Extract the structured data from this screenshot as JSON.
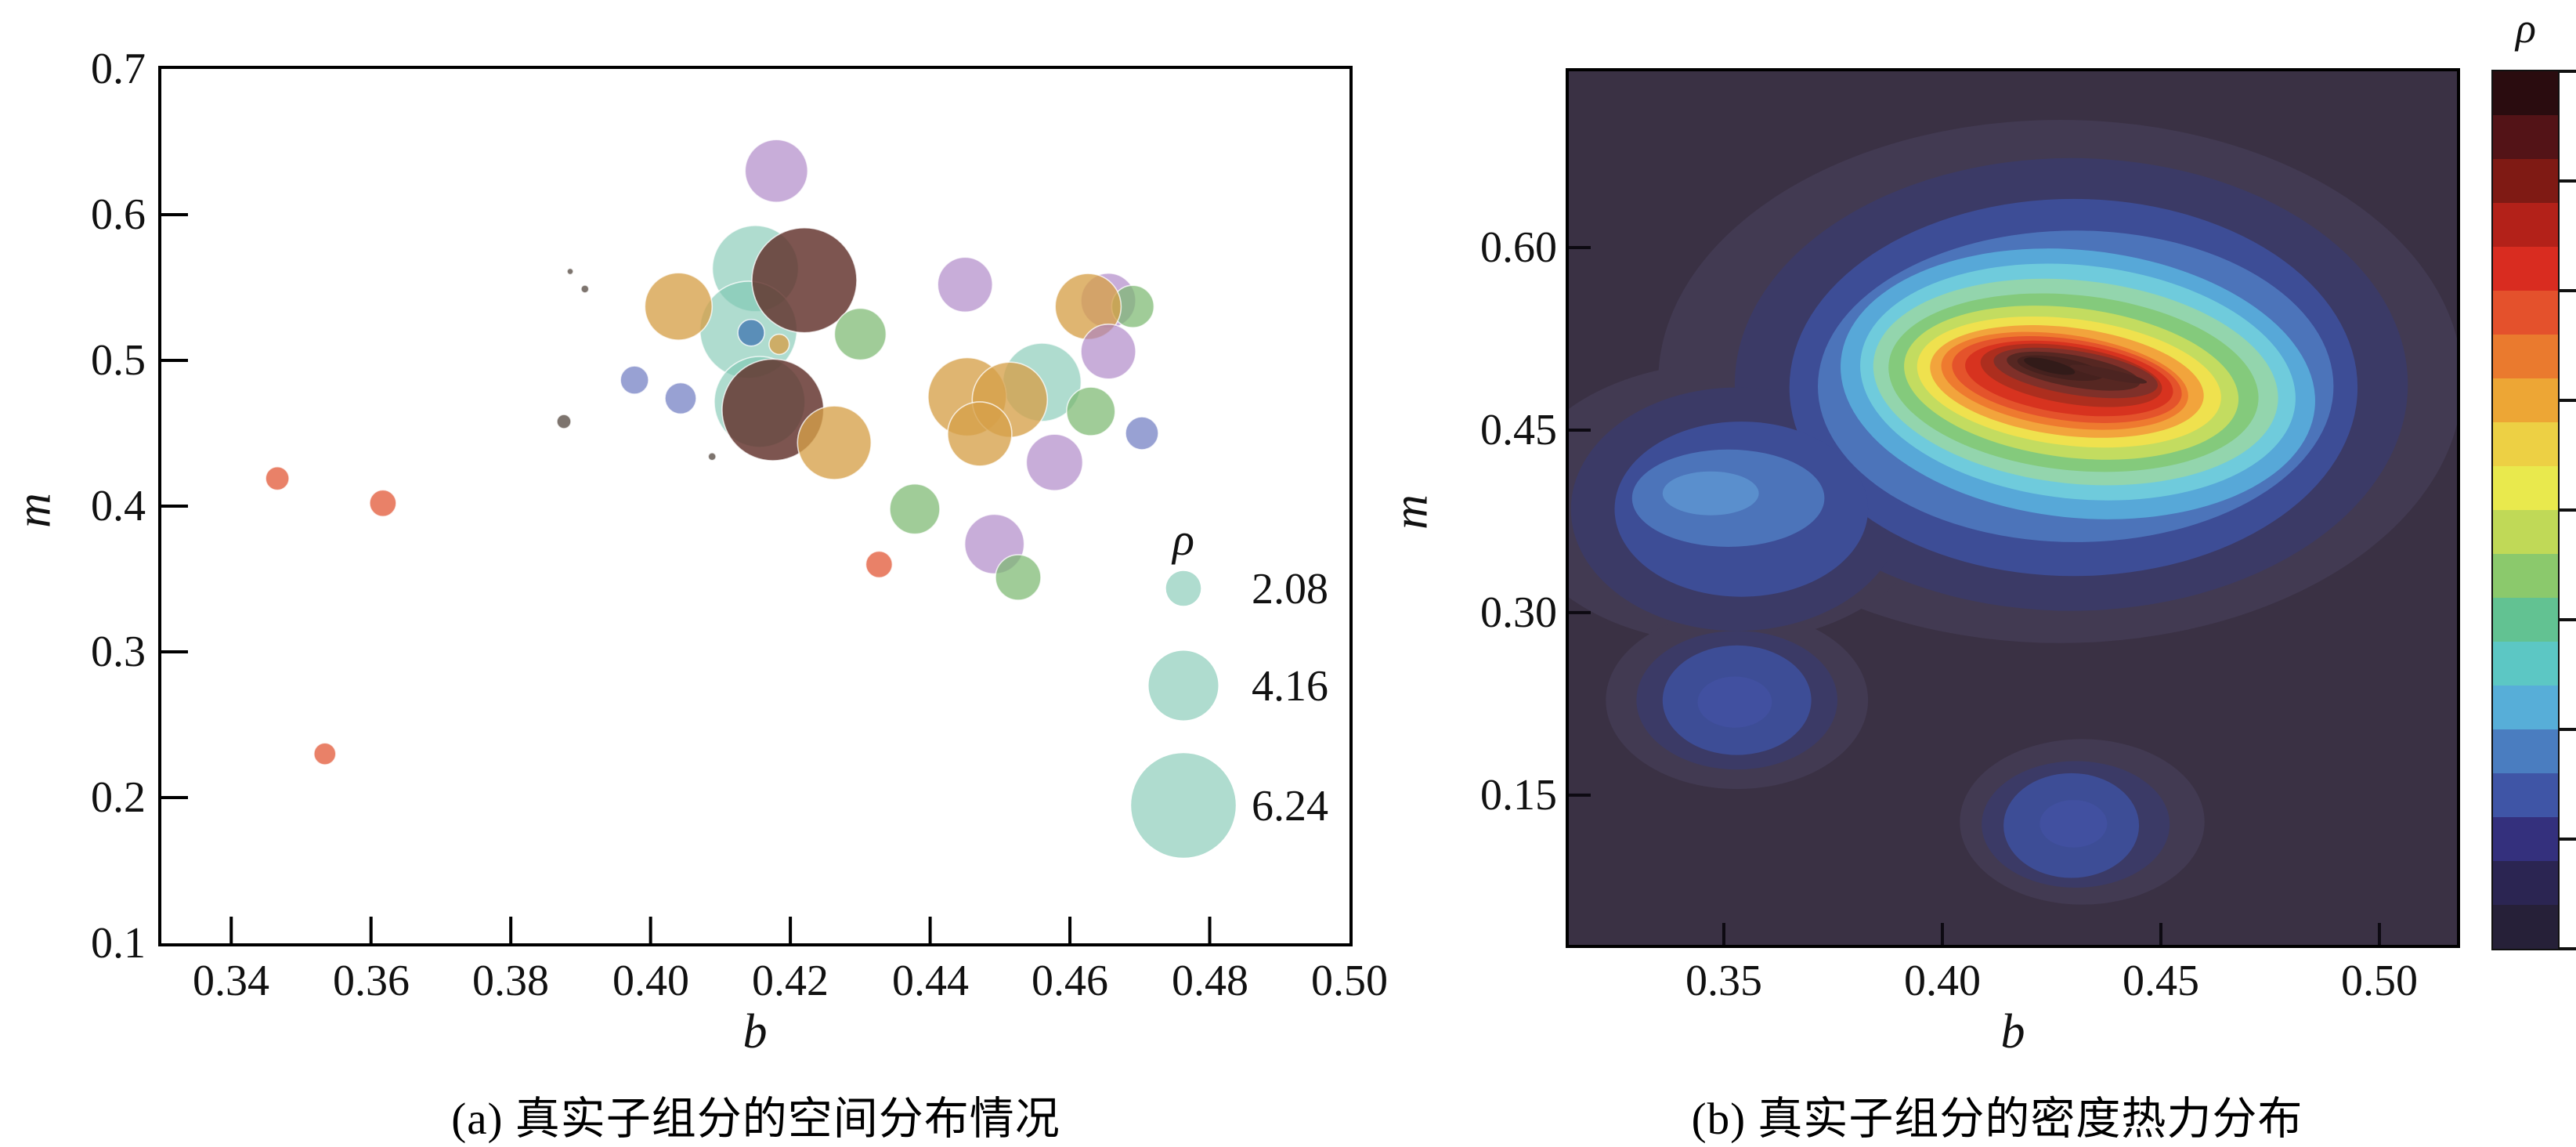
{
  "left_chart": {
    "caption": "(a) 真实子组分的空间分布情况",
    "xlabel": "b",
    "ylabel": "m"
  },
  "right_chart": {
    "caption": "(b) 真实子组分的密度热力分布",
    "xlabel": "b",
    "ylabel": "m",
    "colorbar_label": "ρ",
    "background": "#3a3144"
  },
  "chart_data": [
    {
      "type": "scatter",
      "subtype": "bubble",
      "xlabel": "b",
      "ylabel": "m",
      "x_range": [
        0.33,
        0.5
      ],
      "y_range": [
        0.1,
        0.7
      ],
      "x_ticks": [
        0.34,
        0.36,
        0.38,
        0.4,
        0.42,
        0.44,
        0.46,
        0.48,
        0.5
      ],
      "x_tick_labels": [
        "0.34",
        "0.36",
        "0.38",
        "0.40",
        "0.42",
        "0.44",
        "0.46",
        "0.48",
        "0.50"
      ],
      "y_ticks": [
        0.7,
        0.6,
        0.5,
        0.4,
        0.3,
        0.2,
        0.1
      ],
      "y_tick_labels": [
        "0.7",
        "0.6",
        "0.5",
        "0.4",
        "0.3",
        "0.2",
        "0.1"
      ],
      "size_legend": {
        "title": "ρ",
        "values": [
          2.08,
          4.16,
          6.24
        ],
        "labels": [
          "2.08",
          "4.16",
          "6.24"
        ]
      },
      "palette": {
        "teal": {
          "fill": "#7ec7b2",
          "opacity": 0.62
        },
        "maroon": {
          "fill": "#60302a",
          "opacity": 0.82
        },
        "tan": {
          "fill": "#d6a049",
          "opacity": 0.78
        },
        "green": {
          "fill": "#7cb870",
          "opacity": 0.72
        },
        "purple": {
          "fill": "#ab81c5",
          "opacity": 0.65
        },
        "periwinkle": {
          "fill": "#7682c4",
          "opacity": 0.75
        },
        "steelblue": {
          "fill": "#4f83b5",
          "opacity": 0.88
        },
        "salmon": {
          "fill": "#e87a60",
          "opacity": 0.95
        },
        "gray": {
          "fill": "#6f655e",
          "opacity": 0.9
        }
      },
      "points": [
        {
          "b": 0.415,
          "m": 0.563,
          "rho": 5.14,
          "color": "teal"
        },
        {
          "b": 0.414,
          "m": 0.521,
          "rho": 5.79,
          "color": "teal"
        },
        {
          "b": 0.4156,
          "m": 0.4715,
          "rho": 5.42,
          "color": "teal"
        },
        {
          "b": 0.456,
          "m": 0.485,
          "rho": 4.67,
          "color": "teal"
        },
        {
          "b": 0.404,
          "m": 0.537,
          "rho": 4.02,
          "color": "tan"
        },
        {
          "b": 0.422,
          "m": 0.555,
          "rho": 6.26,
          "color": "maroon"
        },
        {
          "b": 0.4144,
          "m": 0.519,
          "rho": 1.59,
          "color": "steelblue"
        },
        {
          "b": 0.4184,
          "m": 0.511,
          "rho": 1.21,
          "color": "tan"
        },
        {
          "b": 0.4175,
          "m": 0.466,
          "rho": 6.07,
          "color": "maroon"
        },
        {
          "b": 0.4263,
          "m": 0.4435,
          "rho": 4.39,
          "color": "tan"
        },
        {
          "b": 0.43,
          "m": 0.518,
          "rho": 3.08,
          "color": "green"
        },
        {
          "b": 0.418,
          "m": 0.63,
          "rho": 3.74,
          "color": "purple"
        },
        {
          "b": 0.445,
          "m": 0.552,
          "rho": 3.27,
          "color": "purple"
        },
        {
          "b": 0.4655,
          "m": 0.541,
          "rho": 3.27,
          "color": "purple"
        },
        {
          "b": 0.469,
          "m": 0.537,
          "rho": 2.52,
          "color": "green"
        },
        {
          "b": 0.4626,
          "m": 0.537,
          "rho": 3.93,
          "color": "tan"
        },
        {
          "b": 0.4655,
          "m": 0.506,
          "rho": 3.27,
          "color": "purple"
        },
        {
          "b": 0.4453,
          "m": 0.475,
          "rho": 4.67,
          "color": "tan"
        },
        {
          "b": 0.4514,
          "m": 0.473,
          "rho": 4.49,
          "color": "tan"
        },
        {
          "b": 0.4471,
          "m": 0.4495,
          "rho": 3.83,
          "color": "tan"
        },
        {
          "b": 0.463,
          "m": 0.465,
          "rho": 2.9,
          "color": "green"
        },
        {
          "b": 0.4703,
          "m": 0.45,
          "rho": 1.96,
          "color": "periwinkle"
        },
        {
          "b": 0.4578,
          "m": 0.43,
          "rho": 3.36,
          "color": "purple"
        },
        {
          "b": 0.4378,
          "m": 0.398,
          "rho": 2.99,
          "color": "green"
        },
        {
          "b": 0.4492,
          "m": 0.374,
          "rho": 3.55,
          "color": "purple"
        },
        {
          "b": 0.4526,
          "m": 0.351,
          "rho": 2.71,
          "color": "green"
        },
        {
          "b": 0.3466,
          "m": 0.419,
          "rho": 1.4,
          "color": "salmon"
        },
        {
          "b": 0.3617,
          "m": 0.402,
          "rho": 1.59,
          "color": "salmon"
        },
        {
          "b": 0.3534,
          "m": 0.23,
          "rho": 1.31,
          "color": "salmon"
        },
        {
          "b": 0.4327,
          "m": 0.36,
          "rho": 1.59,
          "color": "salmon"
        },
        {
          "b": 0.3977,
          "m": 0.4865,
          "rho": 1.68,
          "color": "periwinkle"
        },
        {
          "b": 0.4043,
          "m": 0.474,
          "rho": 1.87,
          "color": "periwinkle"
        },
        {
          "b": 0.3885,
          "m": 0.561,
          "rho": 0.37,
          "color": "gray"
        },
        {
          "b": 0.3906,
          "m": 0.549,
          "rho": 0.47,
          "color": "gray"
        },
        {
          "b": 0.3876,
          "m": 0.458,
          "rho": 0.84,
          "color": "gray"
        },
        {
          "b": 0.4088,
          "m": 0.434,
          "rho": 0.47,
          "color": "gray"
        }
      ]
    },
    {
      "type": "heatmap",
      "subtype": "kde-contour",
      "xlabel": "b",
      "ylabel": "m",
      "x_range": [
        0.315,
        0.518
      ],
      "y_range": [
        0.024,
        0.745
      ],
      "x_ticks": [
        0.35,
        0.4,
        0.45,
        0.5
      ],
      "x_tick_labels": [
        "0.35",
        "0.40",
        "0.45",
        "0.50"
      ],
      "y_ticks": [
        0.6,
        0.45,
        0.3,
        0.15
      ],
      "y_tick_labels": [
        "0.60",
        "0.45",
        "0.30",
        "0.15"
      ],
      "colorbar_label": "ρ",
      "colorbar_tick_count": 9,
      "colorbar_bands_top_to_bottom": [
        "#2a0c0f",
        "#531317",
        "#7f1a14",
        "#b32119",
        "#d92c20",
        "#e4512c",
        "#ea7a2e",
        "#eda635",
        "#edd044",
        "#e9e94d",
        "#c0d957",
        "#8bc96c",
        "#62c292",
        "#5cc7c4",
        "#57aed8",
        "#4a7dc0",
        "#3f55a6",
        "#34307d",
        "#2b2552",
        "#262038"
      ],
      "peaks": [
        {
          "b": 0.428,
          "m": 0.5,
          "note": "main density maximum (dark maroon core)"
        },
        {
          "b": 0.3525,
          "m": 0.2265,
          "note": "secondary low peak, bottom-left"
        },
        {
          "b": 0.4295,
          "m": 0.127,
          "note": "secondary low peak, bottom-middle"
        }
      ],
      "density_layers": [
        [
          0.427,
          0.49,
          0.092,
          0.215,
          0,
          "#423a52"
        ],
        [
          0.35,
          0.39,
          0.048,
          0.115,
          0,
          "#423a52"
        ],
        [
          0.353,
          0.228,
          0.03,
          0.073,
          0,
          "#423a52"
        ],
        [
          0.432,
          0.128,
          0.028,
          0.068,
          0,
          "#423a52"
        ],
        [
          0.4295,
          0.4875,
          0.077,
          0.186,
          0,
          "#3b3a66"
        ],
        [
          0.353,
          0.385,
          0.038,
          0.1,
          0,
          "#3b3a66"
        ],
        [
          0.353,
          0.228,
          0.023,
          0.057,
          0,
          "#3b3a66"
        ],
        [
          0.4305,
          0.126,
          0.0215,
          0.052,
          0,
          "#3b3a66"
        ],
        [
          0.43,
          0.485,
          0.065,
          0.155,
          0,
          "#3d4d96"
        ],
        [
          0.354,
          0.385,
          0.029,
          0.072,
          0,
          "#3d4d96"
        ],
        [
          0.353,
          0.228,
          0.017,
          0.045,
          0,
          "#3d4d96"
        ],
        [
          0.4295,
          0.125,
          0.0155,
          0.043,
          0,
          "#3d4d96"
        ],
        [
          0.4305,
          0.486,
          0.059,
          0.128,
          0,
          "#4c74ba"
        ],
        [
          0.351,
          0.394,
          0.022,
          0.04,
          0,
          "#4c74ba"
        ],
        [
          0.347,
          0.398,
          0.011,
          0.018,
          0,
          "#5a8fcd"
        ],
        [
          0.3525,
          0.2265,
          0.0085,
          0.021,
          0,
          "#4150a0"
        ],
        [
          0.43,
          0.1265,
          0.0077,
          0.0195,
          0,
          "#4150a0"
        ],
        [
          0.431,
          0.488,
          0.0545,
          0.11,
          6,
          "#57a8d8"
        ],
        [
          0.431,
          0.4895,
          0.05,
          0.096,
          6,
          "#6fcbdc"
        ],
        [
          0.4305,
          0.4895,
          0.0465,
          0.0835,
          6,
          "#93d5ad"
        ],
        [
          0.43,
          0.489,
          0.0425,
          0.072,
          6,
          "#84ca7c"
        ],
        [
          0.4295,
          0.489,
          0.0385,
          0.0615,
          7,
          "#c3dc60"
        ],
        [
          0.429,
          0.4895,
          0.035,
          0.052,
          7,
          "#efe14e"
        ],
        [
          0.4285,
          0.49,
          0.0315,
          0.0445,
          7,
          "#f2a43c"
        ],
        [
          0.428,
          0.4905,
          0.0285,
          0.038,
          8,
          "#ee7a2f"
        ],
        [
          0.4285,
          0.4915,
          0.0265,
          0.0335,
          8,
          "#e4532b"
        ],
        [
          0.429,
          0.4925,
          0.024,
          0.029,
          8,
          "#d7331f"
        ],
        [
          0.4295,
          0.495,
          0.021,
          0.0235,
          9,
          "#ad2e1e"
        ],
        [
          0.4305,
          0.497,
          0.019,
          0.018,
          9,
          "#7f3029"
        ],
        [
          0.43,
          0.4985,
          0.0155,
          0.013,
          10,
          "#562722"
        ],
        [
          0.427,
          0.501,
          0.01,
          0.0085,
          10,
          "#45211e"
        ],
        [
          0.438,
          0.496,
          0.009,
          0.004,
          12,
          "#4c2421"
        ],
        [
          0.4245,
          0.5025,
          0.006,
          0.005,
          14,
          "#321b19"
        ]
      ]
    }
  ]
}
